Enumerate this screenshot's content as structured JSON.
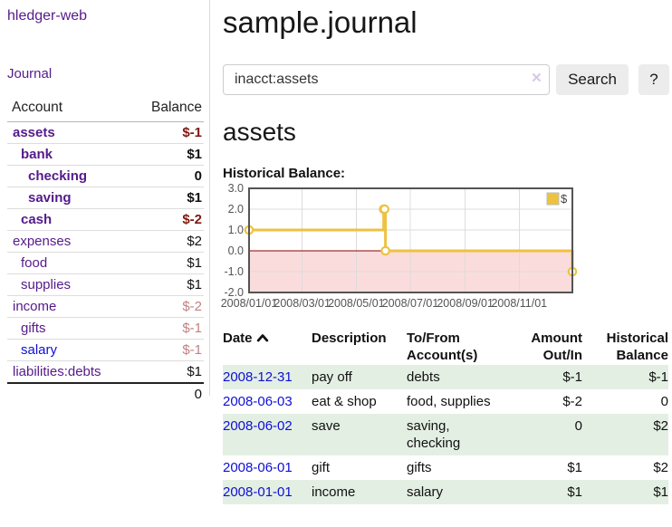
{
  "app": {
    "brand": "hledger-web"
  },
  "colors": {
    "link_purple": "#551a8b",
    "link_blue": "#0f0fd6",
    "negative_strong": "#7f1810",
    "negative_soft": "#c28181",
    "row_stripe_green": "#e3efe3",
    "chart_line": "#edc240",
    "chart_negative_fill": "#fbdcdc",
    "chart_zero_line": "#8b0000",
    "button_gray": "#ececec"
  },
  "sidebar": {
    "journal_link": "Journal",
    "accounts": {
      "headers": {
        "account": "Account",
        "balance": "Balance"
      },
      "rows": [
        {
          "name": "assets",
          "balance": "$-1",
          "depth": 1,
          "bold": true,
          "name_color": "purple",
          "balance_tone": "neg-strong"
        },
        {
          "name": "bank",
          "balance": "$1",
          "depth": 2,
          "bold": true,
          "name_color": "purple",
          "balance_tone": "plain"
        },
        {
          "name": "checking",
          "balance": "0",
          "depth": 3,
          "bold": true,
          "name_color": "purple",
          "balance_tone": "plain"
        },
        {
          "name": "saving",
          "balance": "$1",
          "depth": 3,
          "bold": true,
          "name_color": "purple",
          "balance_tone": "plain"
        },
        {
          "name": "cash",
          "balance": "$-2",
          "depth": 2,
          "bold": true,
          "name_color": "purple",
          "balance_tone": "neg-strong"
        },
        {
          "name": "expenses",
          "balance": "$2",
          "depth": 1,
          "bold": false,
          "name_color": "purple",
          "balance_tone": "plain"
        },
        {
          "name": "food",
          "balance": "$1",
          "depth": 2,
          "bold": false,
          "name_color": "purple",
          "balance_tone": "plain"
        },
        {
          "name": "supplies",
          "balance": "$1",
          "depth": 2,
          "bold": false,
          "name_color": "purple",
          "balance_tone": "plain"
        },
        {
          "name": "income",
          "balance": "$-2",
          "depth": 1,
          "bold": false,
          "name_color": "purple",
          "balance_tone": "neg-soft"
        },
        {
          "name": "gifts",
          "balance": "$-1",
          "depth": 2,
          "bold": false,
          "name_color": "purple",
          "balance_tone": "neg-soft"
        },
        {
          "name": "salary",
          "balance": "$-1",
          "depth": 2,
          "bold": false,
          "name_color": "blue",
          "balance_tone": "neg-soft"
        },
        {
          "name": "liabilities:debts",
          "balance": "$1",
          "depth": 1,
          "bold": false,
          "name_color": "purple",
          "balance_tone": "plain"
        }
      ],
      "total": "0"
    }
  },
  "main": {
    "title": "sample.journal",
    "search": {
      "value": "inacct:assets",
      "clear_icon": "×",
      "search_label": "Search",
      "help_label": "?"
    },
    "account_heading": "assets"
  },
  "chart_data": {
    "type": "line",
    "step": true,
    "title": "Historical Balance:",
    "x_range": [
      "2008-01-01",
      "2008-12-31"
    ],
    "ylim": [
      -2.0,
      3.0
    ],
    "y_ticks": [
      "3.0",
      "2.0",
      "1.0",
      "0.0",
      "-1.0",
      "-2.0"
    ],
    "x_ticks": [
      "2008/01/01",
      "2008/03/01",
      "2008/05/01",
      "2008/07/01",
      "2008/09/01",
      "2008/11/01"
    ],
    "grid": true,
    "negative_region_shaded": true,
    "legend": {
      "label": "$",
      "position": "top-right"
    },
    "series": [
      {
        "name": "$",
        "color": "#edc240",
        "points": [
          [
            "2008-01-01",
            1
          ],
          [
            "2008-06-01",
            2
          ],
          [
            "2008-06-02",
            2
          ],
          [
            "2008-06-03",
            0
          ],
          [
            "2008-12-31",
            -1
          ]
        ]
      }
    ]
  },
  "register": {
    "headers": {
      "date": "Date",
      "description": "Description",
      "accounts": "To/From Account(s)",
      "amount": "Amount Out/In",
      "balance": "Historical Balance"
    },
    "sort": {
      "column": "date",
      "direction": "ascending"
    },
    "rows": [
      {
        "date": "2008-12-31",
        "description": "pay off",
        "accounts": "debts",
        "amount": "$-1",
        "balance": "$-1",
        "amount_negative": true,
        "balance_negative": true
      },
      {
        "date": "2008-06-03",
        "description": "eat & shop",
        "accounts": "food, supplies",
        "amount": "$-2",
        "balance": "0",
        "amount_negative": true,
        "balance_negative": false
      },
      {
        "date": "2008-06-02",
        "description": "save",
        "accounts": "saving, checking",
        "amount": "0",
        "balance": "$2",
        "amount_negative": false,
        "balance_negative": false
      },
      {
        "date": "2008-06-01",
        "description": "gift",
        "accounts": "gifts",
        "amount": "$1",
        "balance": "$2",
        "amount_negative": false,
        "balance_negative": false
      },
      {
        "date": "2008-01-01",
        "description": "income",
        "accounts": "salary",
        "amount": "$1",
        "balance": "$1",
        "amount_negative": false,
        "balance_negative": false
      }
    ]
  }
}
